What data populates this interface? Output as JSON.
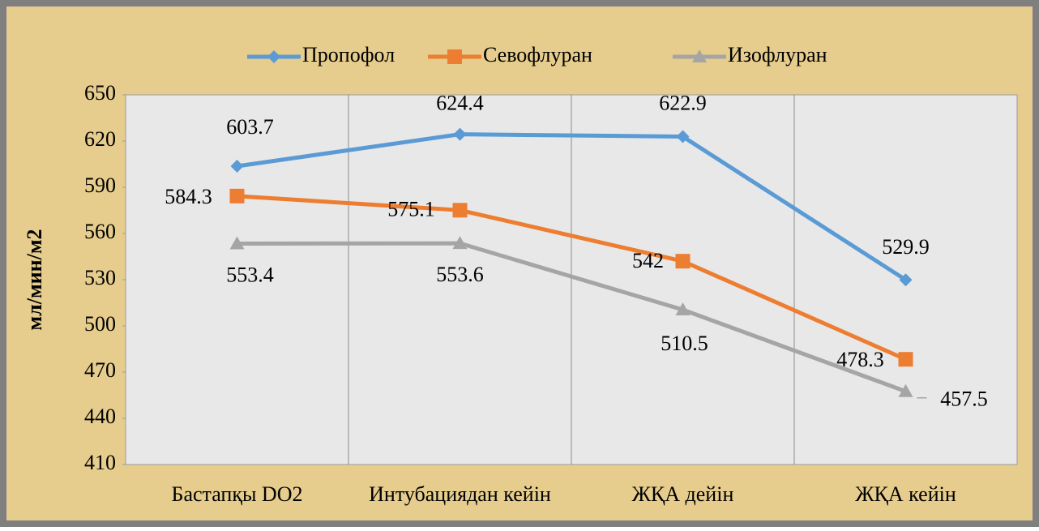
{
  "chart_data": {
    "type": "line",
    "y_label": "мл/мин/м2",
    "categories": [
      "Бастапқы DO2",
      "Интубациядан кейін",
      "ЖҚА дейін",
      "ЖҚА кейін"
    ],
    "series": [
      {
        "name": "Пропофол",
        "color": "#5b9bd5",
        "marker": "diamond",
        "values": [
          603.7,
          624.4,
          622.9,
          529.9
        ]
      },
      {
        "name": "Севофлуран",
        "color": "#ed7d31",
        "marker": "square",
        "values": [
          584.3,
          575.1,
          542,
          478.3
        ]
      },
      {
        "name": "Изофлуран",
        "color": "#a5a5a5",
        "marker": "triangle",
        "values": [
          553.4,
          553.6,
          510.5,
          457.5
        ]
      }
    ],
    "ylim": [
      410,
      650
    ],
    "yticks": [
      410,
      440,
      470,
      500,
      530,
      560,
      590,
      620,
      650
    ],
    "legend": "top"
  }
}
